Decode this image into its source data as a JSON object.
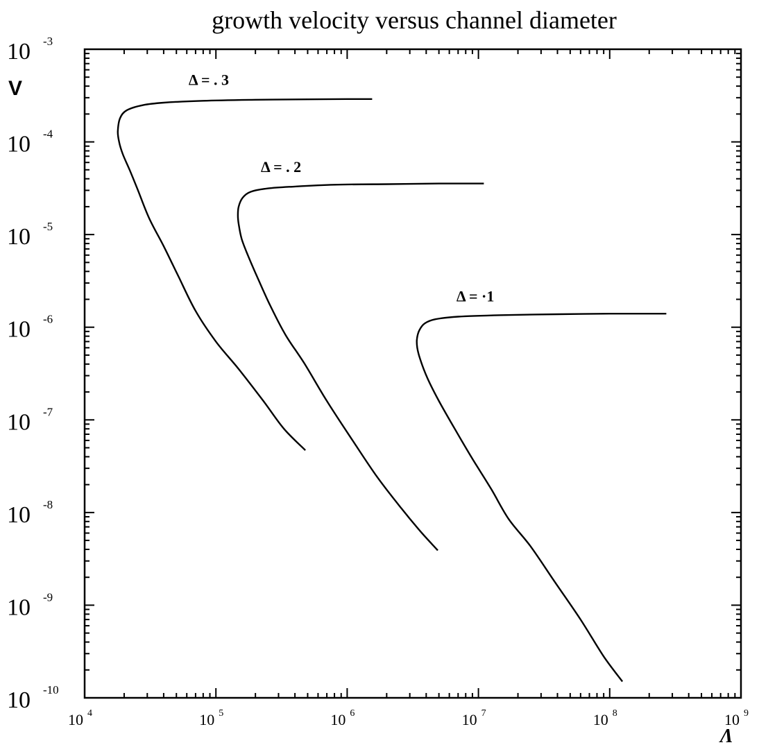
{
  "chart_data": {
    "type": "line",
    "title": "growth velocity versus channel diameter",
    "xlabel": "Λ",
    "ylabel": "V",
    "x_scale": "log",
    "y_scale": "log",
    "xlim": [
      10000,
      1000000000
    ],
    "ylim": [
      1e-10,
      0.001
    ],
    "grid": false,
    "x_ticks": [
      {
        "base": "10",
        "exp": "4"
      },
      {
        "base": "10",
        "exp": "5"
      },
      {
        "base": "10",
        "exp": "6"
      },
      {
        "base": "10",
        "exp": "7"
      },
      {
        "base": "10",
        "exp": "8"
      },
      {
        "base": "10",
        "exp": "9"
      }
    ],
    "y_ticks": [
      {
        "base": "10",
        "exp": "-3"
      },
      {
        "base": "10",
        "exp": "-4"
      },
      {
        "base": "10",
        "exp": "-5"
      },
      {
        "base": "10",
        "exp": "-6"
      },
      {
        "base": "10",
        "exp": "-7"
      },
      {
        "base": "10",
        "exp": "-8"
      },
      {
        "base": "10",
        "exp": "-9"
      },
      {
        "base": "10",
        "exp": "-10"
      }
    ],
    "series": [
      {
        "name": "Δ = . 3",
        "points": [
          [
            1550000,
            0.00029
          ],
          [
            1000000,
            0.00029
          ],
          [
            500000,
            0.000288
          ],
          [
            200000,
            0.000285
          ],
          [
            80000,
            0.000278
          ],
          [
            40000,
            0.000265
          ],
          [
            28000,
            0.00025
          ],
          [
            21000,
            0.00022
          ],
          [
            18600,
            0.00018
          ],
          [
            17900,
            0.00013
          ],
          [
            18300,
            0.0001
          ],
          [
            19500,
            7.4e-05
          ],
          [
            22000,
            5e-05
          ],
          [
            25500,
            3e-05
          ],
          [
            31000,
            1.5e-05
          ],
          [
            40000,
            7.5e-06
          ],
          [
            52000,
            3.5e-06
          ],
          [
            70000,
            1.5e-06
          ],
          [
            100000,
            7e-07
          ],
          [
            150000,
            3.5e-07
          ],
          [
            230000,
            1.6e-07
          ],
          [
            330000,
            8e-08
          ],
          [
            480000,
            4.7e-08
          ]
        ]
      },
      {
        "name": "Δ = . 2",
        "points": [
          [
            11000000,
            3.55e-05
          ],
          [
            5000000,
            3.55e-05
          ],
          [
            2000000,
            3.5e-05
          ],
          [
            800000,
            3.45e-05
          ],
          [
            400000,
            3.3e-05
          ],
          [
            250000,
            3.15e-05
          ],
          [
            185000,
            2.9e-05
          ],
          [
            160000,
            2.5e-05
          ],
          [
            149000,
            2e-05
          ],
          [
            147000,
            1.6e-05
          ],
          [
            149000,
            1.3e-05
          ],
          [
            157000,
            9e-06
          ],
          [
            175000,
            6e-06
          ],
          [
            210000,
            3.3e-06
          ],
          [
            260000,
            1.7e-06
          ],
          [
            340000,
            8.2e-07
          ],
          [
            470000,
            4.1e-07
          ],
          [
            700000,
            1.6e-07
          ],
          [
            1100000,
            6e-08
          ],
          [
            1700000,
            2.4e-08
          ],
          [
            2600000,
            1.1e-08
          ],
          [
            3600000,
            6.3e-09
          ],
          [
            4900000,
            3.9e-09
          ]
        ]
      },
      {
        "name": "Δ = ·1",
        "points": [
          [
            270000000,
            1.4e-06
          ],
          [
            100000000,
            1.4e-06
          ],
          [
            40000000,
            1.38e-06
          ],
          [
            15000000,
            1.35e-06
          ],
          [
            7000000,
            1.3e-06
          ],
          [
            4700000,
            1.22e-06
          ],
          [
            3900000,
            1.1e-06
          ],
          [
            3550000,
            9.3e-07
          ],
          [
            3400000,
            7.5e-07
          ],
          [
            3420000,
            6e-07
          ],
          [
            3600000,
            4.5e-07
          ],
          [
            4100000,
            2.8e-07
          ],
          [
            5000000,
            1.6e-07
          ],
          [
            6600000,
            8e-08
          ],
          [
            9000000,
            3.8e-08
          ],
          [
            12500000,
            1.8e-08
          ],
          [
            17000000,
            8.5e-09
          ],
          [
            25000000,
            4.3e-09
          ],
          [
            38000000,
            1.8e-09
          ],
          [
            60000000,
            7e-10
          ],
          [
            90000000,
            2.8e-10
          ],
          [
            125000000,
            1.5e-10
          ]
        ]
      }
    ]
  }
}
